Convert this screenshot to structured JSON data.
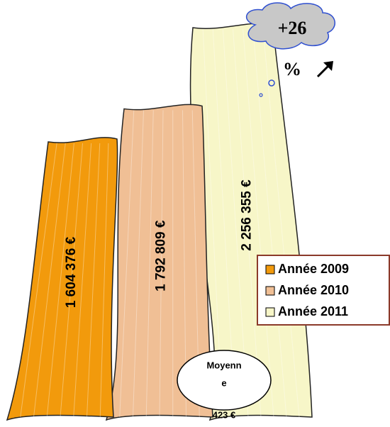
{
  "chart_data": {
    "type": "bar",
    "categories": [
      "Année 2009",
      "Année 2010",
      "Année 2011"
    ],
    "values": [
      1604376,
      1792809,
      2256355
    ],
    "value_labels": [
      "1 604 376 €",
      "1 792 809 €",
      "2 256 355 €"
    ],
    "colors": [
      "#f29a0c",
      "#f0bf95",
      "#f7f6c8"
    ],
    "legend": "right",
    "annotation_lines": [
      "+26",
      "%"
    ],
    "average_label_lines": [
      "Moyenn",
      "e",
      "423 €"
    ]
  }
}
